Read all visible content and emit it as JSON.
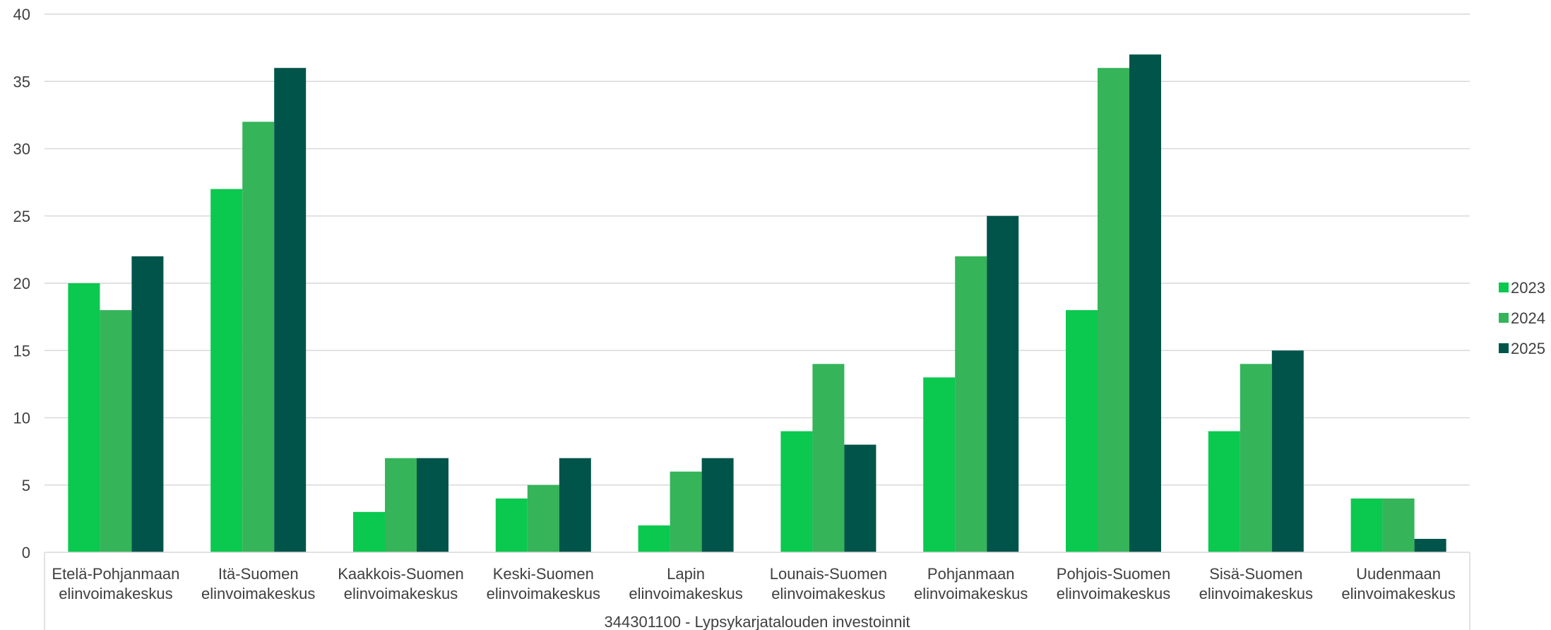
{
  "chart_data": {
    "type": "bar",
    "group_label": "344301100 - Lypsykarjatalouden investoinnit",
    "categories": [
      [
        "Etelä-Pohjanmaan",
        "elinvoimakeskus"
      ],
      [
        "Itä-Suomen",
        "elinvoimakeskus"
      ],
      [
        "Kaakkois-Suomen",
        "elinvoimakeskus"
      ],
      [
        "Keski-Suomen",
        "elinvoimakeskus"
      ],
      [
        "Lapin",
        "elinvoimakeskus"
      ],
      [
        "Lounais-Suomen",
        "elinvoimakeskus"
      ],
      [
        "Pohjanmaan",
        "elinvoimakeskus"
      ],
      [
        "Pohjois-Suomen",
        "elinvoimakeskus"
      ],
      [
        "Sisä-Suomen",
        "elinvoimakeskus"
      ],
      [
        "Uudenmaan",
        "elinvoimakeskus"
      ]
    ],
    "series": [
      {
        "name": "2023",
        "color": "#0BC84F",
        "values": [
          20,
          27,
          3,
          4,
          2,
          9,
          13,
          18,
          9,
          4
        ]
      },
      {
        "name": "2024",
        "color": "#35B45A",
        "values": [
          18,
          32,
          7,
          5,
          6,
          14,
          22,
          36,
          14,
          4
        ]
      },
      {
        "name": "2025",
        "color": "#00544A",
        "values": [
          22,
          36,
          7,
          7,
          7,
          8,
          25,
          37,
          15,
          1
        ]
      }
    ],
    "ylim": [
      0,
      40
    ],
    "yticks": [
      0,
      5,
      10,
      15,
      20,
      25,
      30,
      35,
      40
    ],
    "grid": true,
    "legend_position": "right"
  }
}
